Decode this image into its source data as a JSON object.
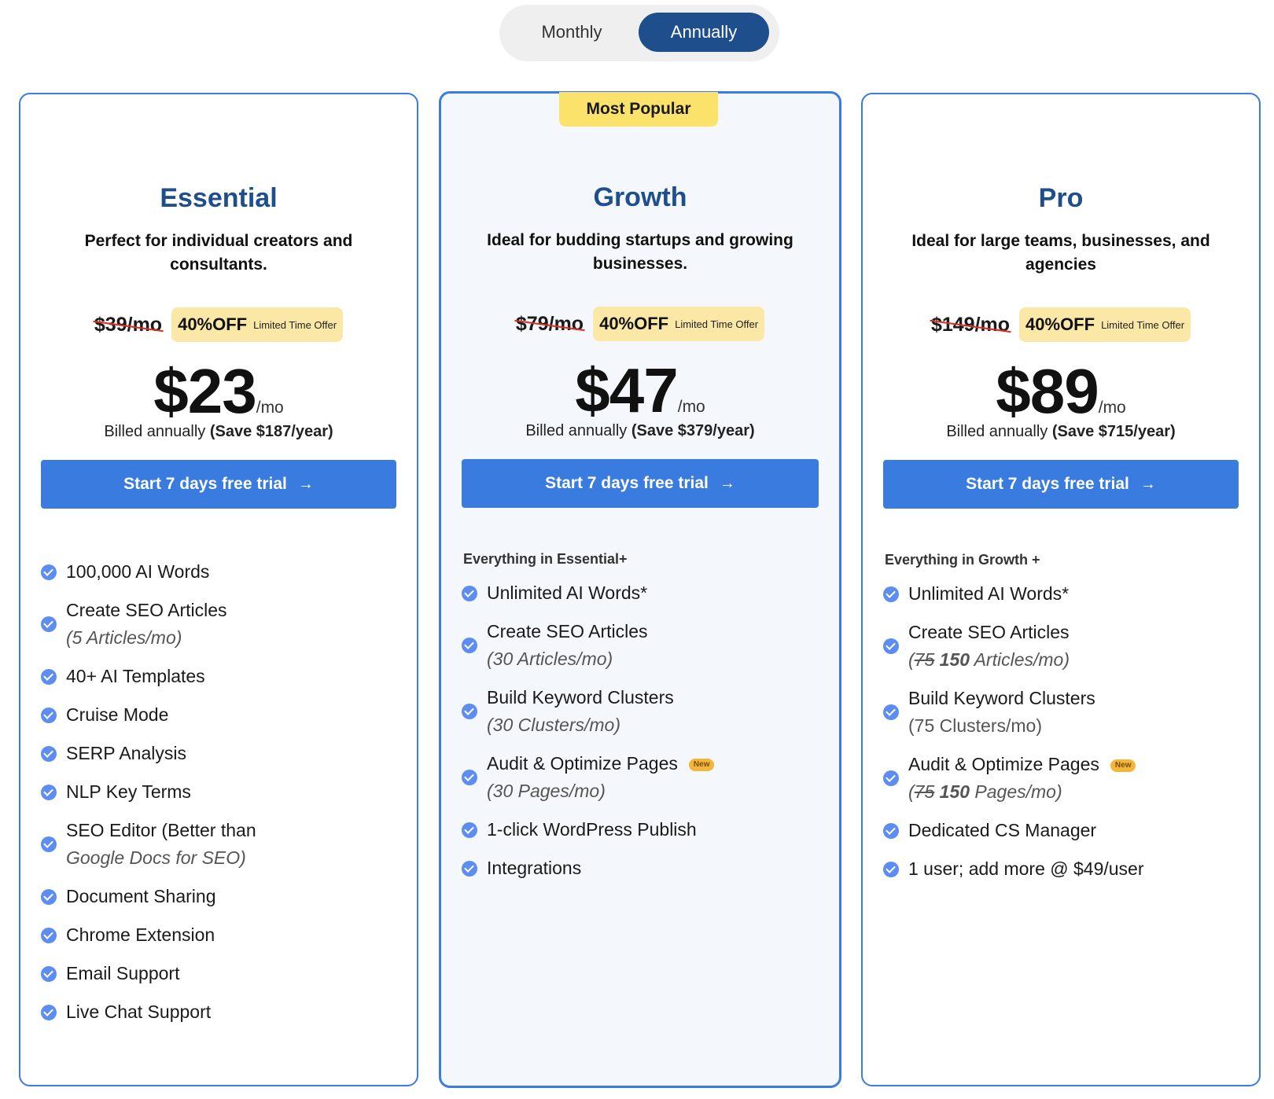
{
  "toggle": {
    "monthly": "Monthly",
    "annually": "Annually",
    "selected": "Annually"
  },
  "colors": {
    "brand": "#1f4e8c",
    "accent": "#3a7be0",
    "highlight": "#fbe26b",
    "badge": "#fbe8a6",
    "strike": "#d93025"
  },
  "plans": [
    {
      "name": "Essential",
      "desc": "Perfect for individual creators and consultants.",
      "old_price": "$39/mo",
      "off_pct": "40%OFF",
      "off_note": "Limited Time Offer",
      "price": "$23",
      "per": "/mo",
      "billed": "Billed annually",
      "save": "(Save $187/year)",
      "cta": "Start 7 days free trial",
      "features": [
        {
          "text": "100,000 AI Words"
        },
        {
          "text": "Create SEO Articles",
          "sub": "(5 Articles/mo)"
        },
        {
          "text": "40+ AI Templates"
        },
        {
          "text": "Cruise Mode"
        },
        {
          "text": "SERP Analysis"
        },
        {
          "text": "NLP Key Terms"
        },
        {
          "text": "SEO Editor (Better than",
          "sub": "Google Docs for SEO)"
        },
        {
          "text": "Document Sharing"
        },
        {
          "text": "Chrome Extension"
        },
        {
          "text": "Email Support"
        },
        {
          "text": "Live Chat Support"
        }
      ]
    },
    {
      "name": "Growth",
      "badge": "Most Popular",
      "desc": "Ideal for budding startups and growing businesses.",
      "old_price": "$79/mo",
      "off_pct": "40%OFF",
      "off_note": "Limited Time Offer",
      "price": "$47",
      "per": "/mo",
      "billed": "Billed annually",
      "save": "(Save $379/year)",
      "cta": "Start 7 days free trial",
      "everything": "Everything in Essential+",
      "features": [
        {
          "text": "Unlimited AI Words*"
        },
        {
          "text": "Create SEO Articles",
          "sub": "(30 Articles/mo)"
        },
        {
          "text": "Build Keyword Clusters",
          "sub": "(30 Clusters/mo)"
        },
        {
          "text": "Audit & Optimize Pages",
          "new": "New",
          "sub": "(30 Pages/mo)"
        },
        {
          "text": "1-click WordPress Publish"
        },
        {
          "text": "Integrations"
        }
      ]
    },
    {
      "name": "Pro",
      "desc": "Ideal for large teams, businesses, and agencies",
      "old_price": "$149/mo",
      "off_pct": "40%OFF",
      "off_note": "Limited Time Offer",
      "price": "$89",
      "per": "/mo",
      "billed": "Billed annually",
      "save": "(Save $715/year)",
      "cta": "Start 7 days free trial",
      "everything": "Everything in Growth +",
      "features": [
        {
          "text": "Unlimited AI Words*"
        },
        {
          "text": "Create SEO Articles",
          "sub_pre": "(",
          "sub_old": "75",
          "sub_new": "150",
          "sub_post": "Articles/mo)"
        },
        {
          "text": "Build Keyword Clusters",
          "sub_plain": "(75 Clusters/mo)"
        },
        {
          "text": "Audit & Optimize Pages",
          "new": "New",
          "sub_pre": "(",
          "sub_old": "75",
          "sub_new": "150",
          "sub_post": "Pages/mo)"
        },
        {
          "text": "Dedicated CS Manager"
        },
        {
          "text": "1 user; add more @ $49/user"
        }
      ]
    }
  ]
}
